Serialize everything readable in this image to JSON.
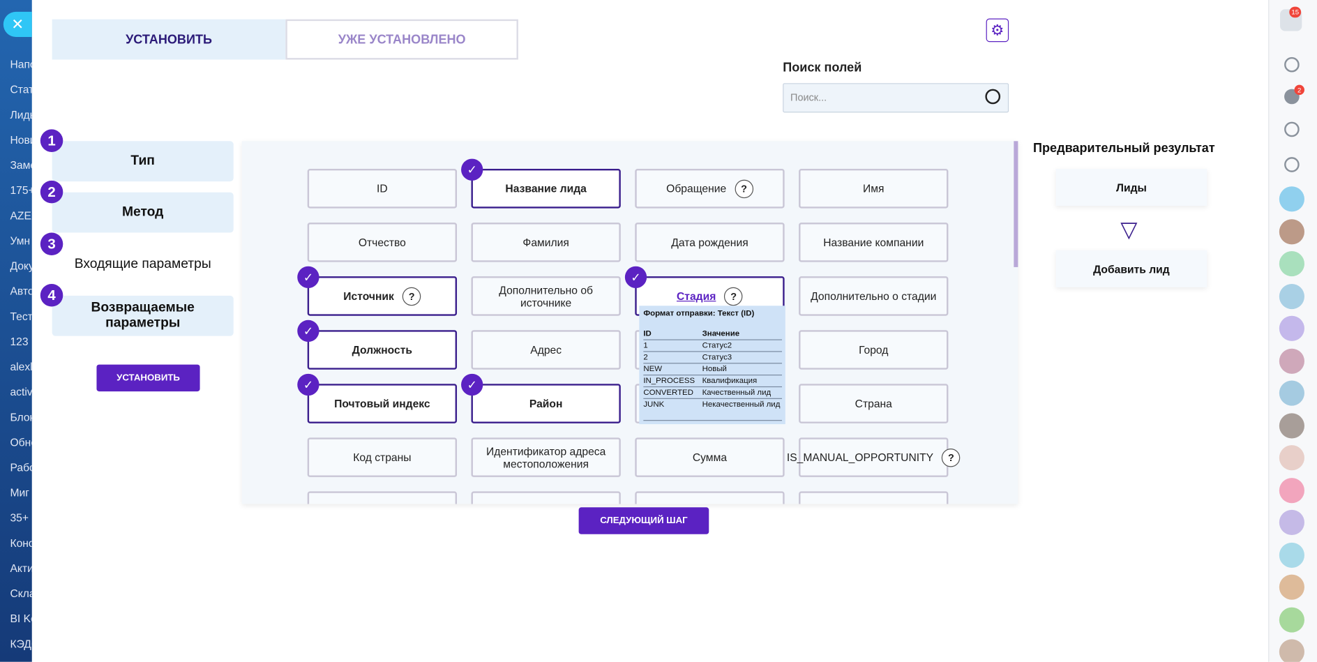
{
  "sidebar_left": {
    "items": [
      "Напо",
      "Стат",
      "Лидь",
      "Нови",
      "Заме",
      "175+",
      "AZEX",
      "Умн",
      "Доку",
      "Авто",
      "Тест",
      "123",
      "alexl",
      "activ",
      "Блок",
      "Обне",
      "Рабо",
      "Миг",
      "35+",
      "Коно",
      "Акти",
      "Скла",
      "BI Ko",
      "КЭДС"
    ]
  },
  "tabs": [
    "УСТАНОВИТЬ",
    "УЖЕ УСТАНОВЛЕНО"
  ],
  "search": {
    "label": "Поиск полей",
    "placeholder": "Поиск..."
  },
  "steps": [
    {
      "number": "1",
      "label": "Тип"
    },
    {
      "number": "2",
      "label": "Метод"
    },
    {
      "number": "3",
      "label": "Входящие параметры"
    },
    {
      "number": "4",
      "label": "Возвращаемые параметры"
    }
  ],
  "install_button": "УСТАНОВИТЬ",
  "help_mark": "?",
  "fields": [
    {
      "label": "ID",
      "checked": false,
      "help": false
    },
    {
      "label": "Название лида",
      "checked": true,
      "help": false
    },
    {
      "label": "Обращение",
      "checked": false,
      "help": true
    },
    {
      "label": "Имя",
      "checked": false,
      "help": false
    },
    {
      "label": "Отчество",
      "checked": false,
      "help": false
    },
    {
      "label": "Фамилия",
      "checked": false,
      "help": false
    },
    {
      "label": "Дата рождения",
      "checked": false,
      "help": false
    },
    {
      "label": "Название компании",
      "checked": false,
      "help": false
    },
    {
      "label": "Источник",
      "checked": true,
      "help": true
    },
    {
      "label": "Дополнительно об источнике",
      "checked": false,
      "help": false
    },
    {
      "label": "Стадия",
      "checked": true,
      "help": true,
      "link": true
    },
    {
      "label": "Дополнительно о стадии",
      "checked": false,
      "help": false
    },
    {
      "label": "Должность",
      "checked": true,
      "help": false
    },
    {
      "label": "Адрес",
      "checked": false,
      "help": false
    },
    {
      "label": null,
      "checked": false,
      "help": false
    },
    {
      "label": "Город",
      "checked": false,
      "help": false
    },
    {
      "label": "Почтовый индекс",
      "checked": true,
      "help": false
    },
    {
      "label": "Район",
      "checked": true,
      "help": false
    },
    {
      "label": null,
      "checked": false,
      "help": false
    },
    {
      "label": "Страна",
      "checked": false,
      "help": false
    },
    {
      "label": "Код страны",
      "checked": false,
      "help": false
    },
    {
      "label": "Идентификатор адреса местоположения",
      "checked": false,
      "help": false
    },
    {
      "label": "Сумма",
      "checked": false,
      "help": false
    },
    {
      "label": "IS_MANUAL_OPPORTUNITY",
      "checked": false,
      "help": true
    }
  ],
  "tooltip": {
    "title": "Формат отправки: Текст (ID)",
    "columns": [
      "ID",
      "Значение"
    ],
    "rows": [
      [
        "1",
        "Статус2"
      ],
      [
        "2",
        "Статус3"
      ],
      [
        "NEW",
        "Новый"
      ],
      [
        "IN_PROCESS",
        "Квалификация"
      ],
      [
        "CONVERTED",
        "Качественный лид"
      ],
      [
        "JUNK",
        "Некачественный лид"
      ]
    ]
  },
  "next_button": "СЛЕДУЮЩИЙ ШАГ",
  "preview": {
    "title": "Предварительный результат",
    "nodes": [
      "Лиды",
      "Добавить лид"
    ]
  },
  "right_sidebar": {
    "badges": [
      "15",
      "2"
    ]
  }
}
